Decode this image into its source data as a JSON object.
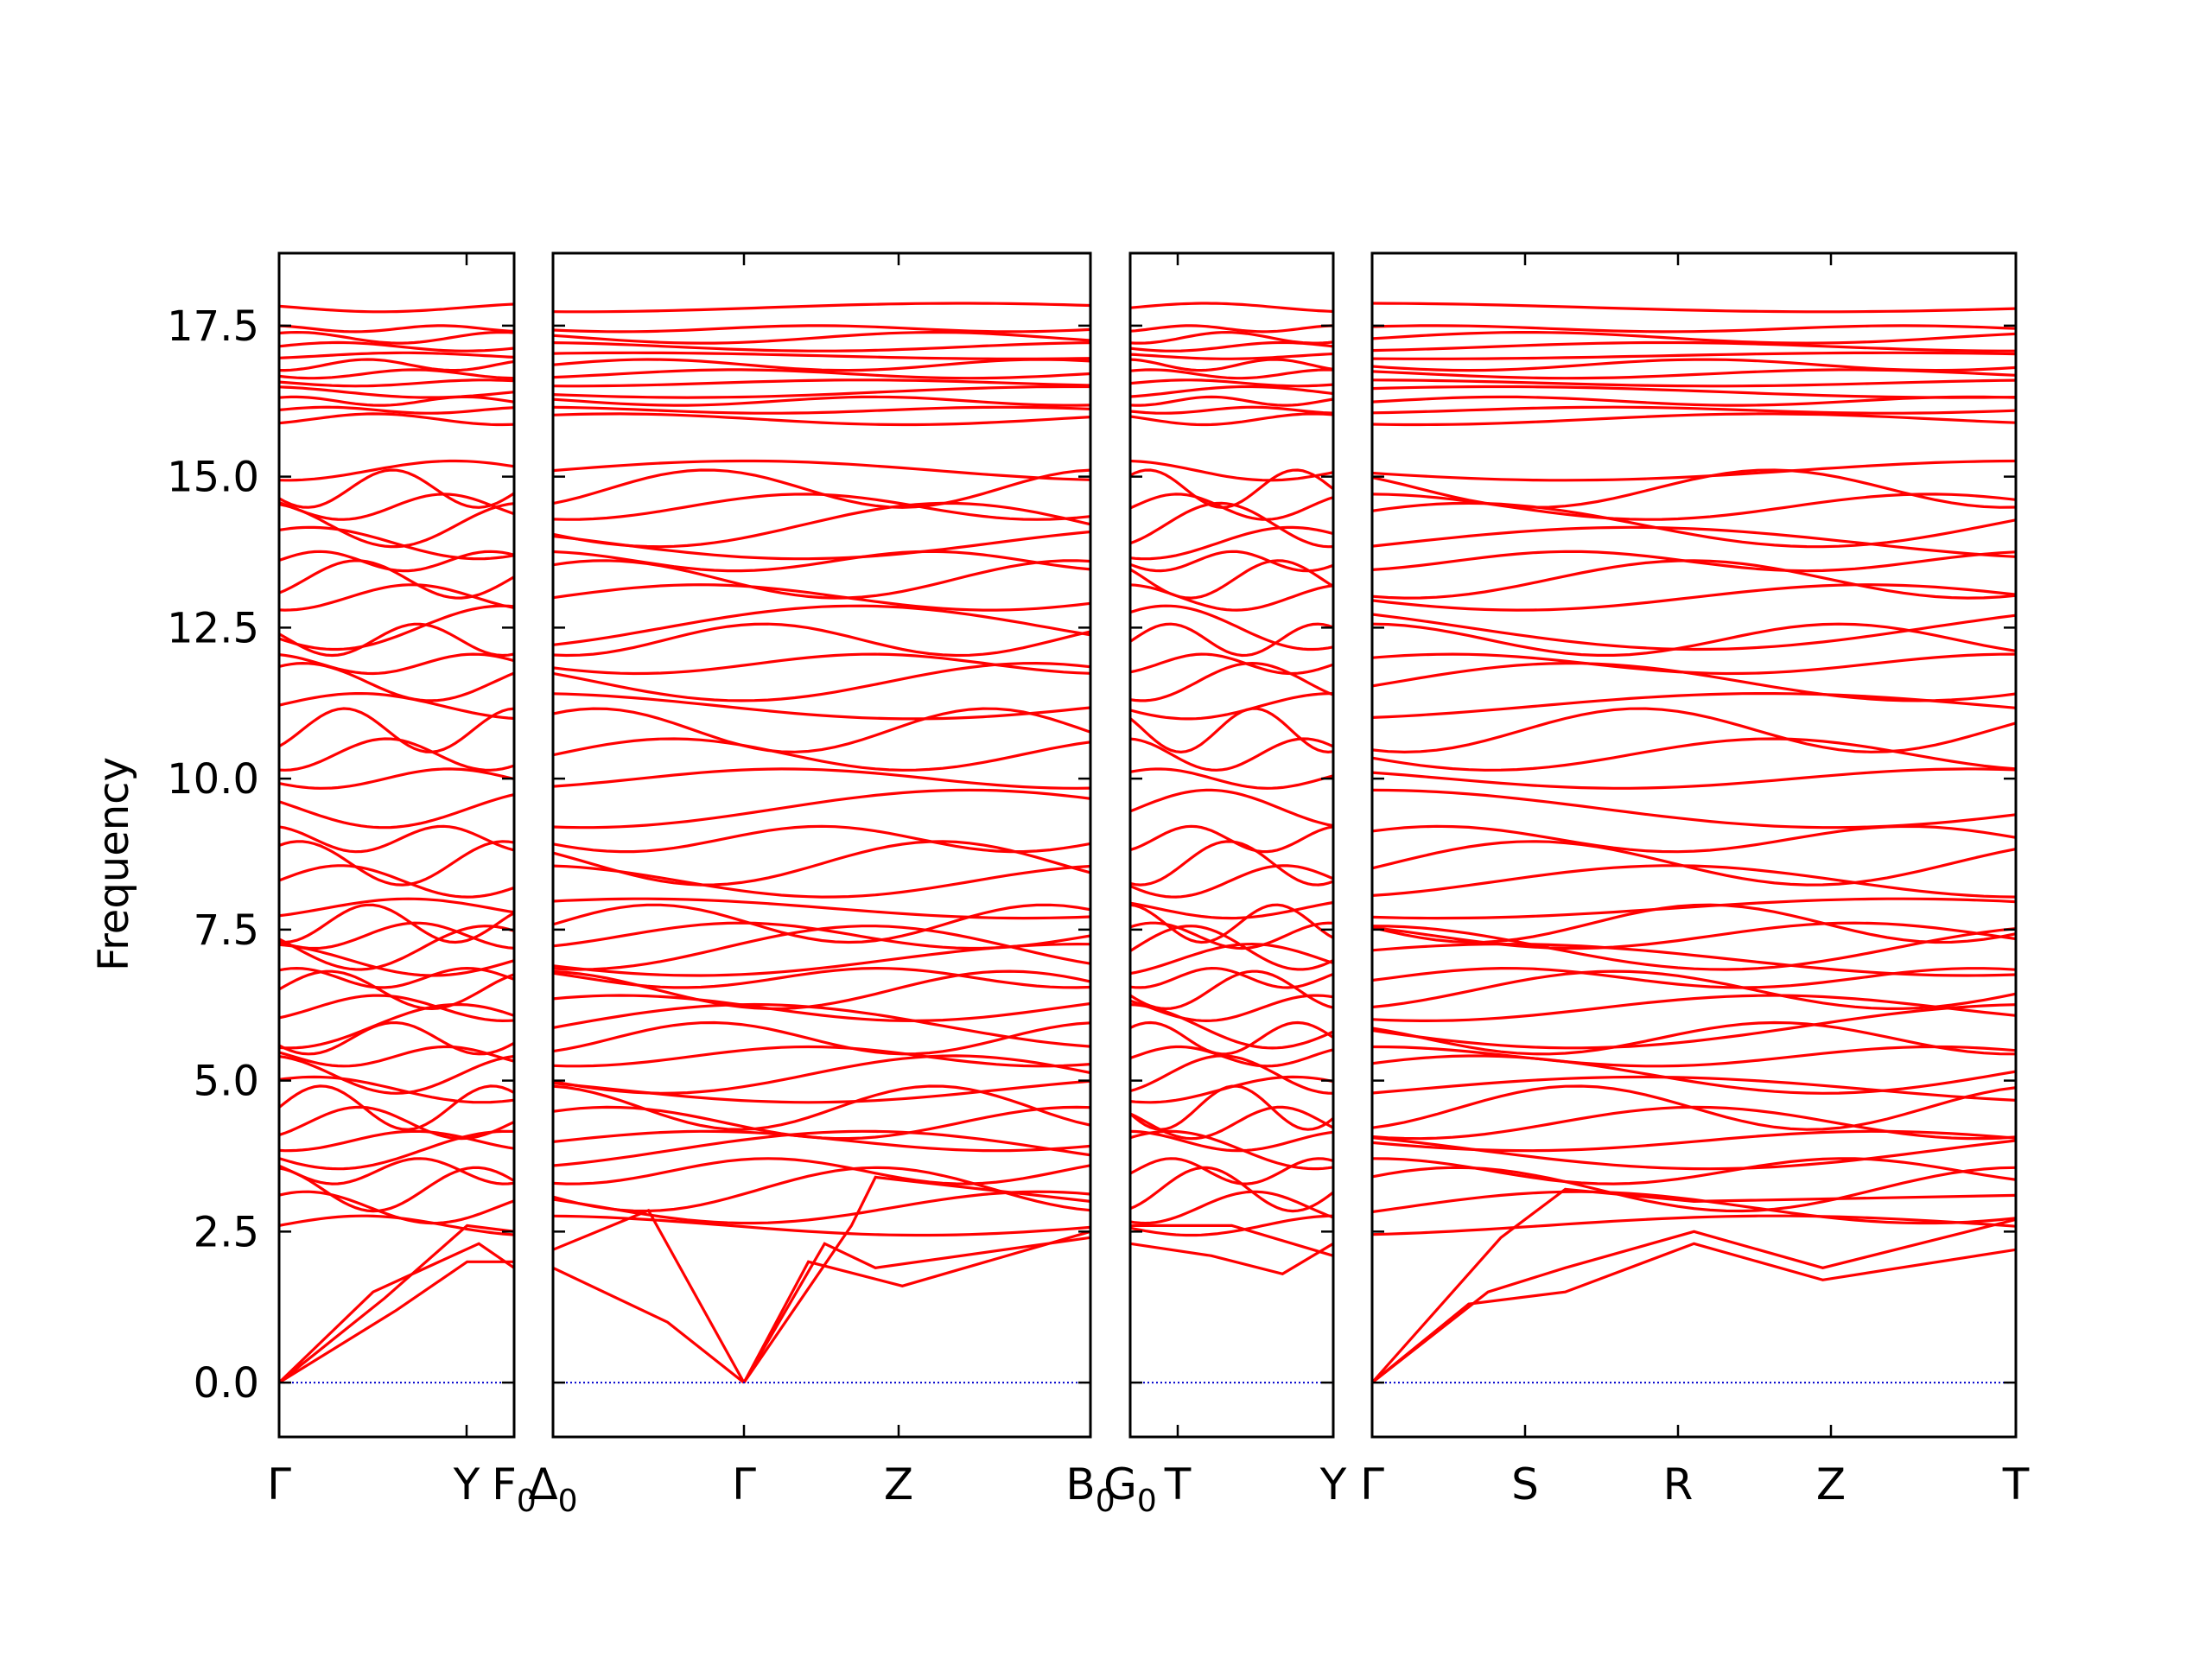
{
  "chart_data": {
    "type": "line",
    "title": "",
    "xlabel": "",
    "ylabel": "Frequency",
    "ylim": [
      -0.9,
      18.7
    ],
    "yticks": [
      "0.0",
      "2.5",
      "5.0",
      "7.5",
      "10.0",
      "12.5",
      "15.0",
      "17.5"
    ],
    "ytick_values": [
      0,
      2.5,
      5,
      7.5,
      10,
      12.5,
      15,
      17.5
    ],
    "grid": false,
    "line_color": "#ff0000",
    "zero_line_color": "#0000cc",
    "panels": [
      {
        "ticks": [
          {
            "main": "Γ",
            "sub": ""
          },
          {
            "main": "Y",
            "sub": ""
          },
          {
            "main": "F",
            "sub": "0"
          }
        ]
      },
      {
        "ticks": [
          {
            "main": "Δ",
            "sub": "0"
          },
          {
            "main": "Γ",
            "sub": ""
          },
          {
            "main": "Z",
            "sub": ""
          },
          {
            "main": "B",
            "sub": "0"
          }
        ]
      },
      {
        "ticks": [
          {
            "main": "G",
            "sub": "0"
          },
          {
            "main": "T",
            "sub": ""
          },
          {
            "main": "Y",
            "sub": ""
          }
        ]
      },
      {
        "ticks": [
          {
            "main": "Γ",
            "sub": ""
          },
          {
            "main": "S",
            "sub": ""
          },
          {
            "main": "R",
            "sub": ""
          },
          {
            "main": "Z",
            "sub": ""
          },
          {
            "main": "T",
            "sub": ""
          }
        ]
      }
    ],
    "optical_bands": [
      2.6,
      2.9,
      3.2,
      3.5,
      3.85,
      4.0,
      4.3,
      4.55,
      4.85,
      5.1,
      5.4,
      5.7,
      5.9,
      6.2,
      6.5,
      6.7,
      7.0,
      7.2,
      7.4,
      7.6,
      7.85,
      8.3,
      8.6,
      9.0,
      9.5,
      10.0,
      10.4,
      10.8,
      11.2,
      11.6,
      11.9,
      12.3,
      12.5,
      13.0,
      13.3,
      13.6,
      13.9,
      14.2,
      14.5,
      14.8,
      15.1,
      15.95,
      16.1,
      16.25,
      16.4,
      16.55,
      16.7,
      16.85,
      17.0,
      17.15,
      17.3,
      17.45,
      17.8
    ]
  }
}
